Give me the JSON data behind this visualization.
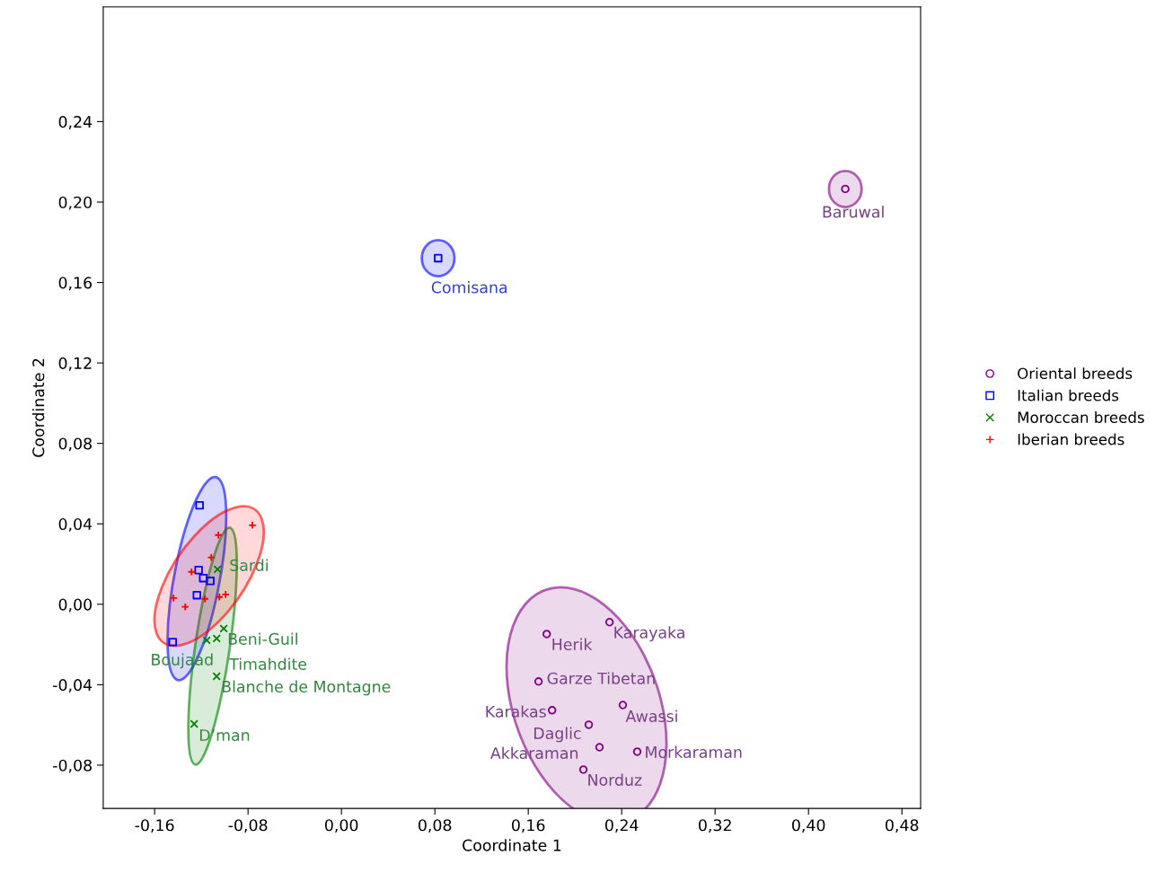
{
  "chart_data": {
    "type": "scatter",
    "xlabel": "Coordinate 1",
    "ylabel": "Coordinate 2",
    "xlim": [
      -0.204,
      0.496
    ],
    "ylim": [
      -0.1015,
      0.297
    ],
    "xticks": [
      {
        "value": -0.16,
        "label": "-0,16"
      },
      {
        "value": -0.08,
        "label": "-0,08"
      },
      {
        "value": 0,
        "label": "0,00"
      },
      {
        "value": 0.08,
        "label": "0,08"
      },
      {
        "value": 0.16,
        "label": "0,16"
      },
      {
        "value": 0.24,
        "label": "0,24"
      },
      {
        "value": 0.32,
        "label": "0,32"
      },
      {
        "value": 0.4,
        "label": "0,40"
      },
      {
        "value": 0.48,
        "label": "0,48"
      }
    ],
    "yticks": [
      {
        "value": -0.08,
        "label": "-0,08"
      },
      {
        "value": -0.04,
        "label": "-0,04"
      },
      {
        "value": 0,
        "label": "0,00"
      },
      {
        "value": 0.04,
        "label": "0,04"
      },
      {
        "value": 0.08,
        "label": "0,08"
      },
      {
        "value": 0.12,
        "label": "0,12"
      },
      {
        "value": 0.16,
        "label": "0,16"
      },
      {
        "value": 0.2,
        "label": "0,20"
      },
      {
        "value": 0.24,
        "label": "0,24"
      }
    ],
    "grid": false,
    "legend": "right",
    "series": [
      {
        "name": "Oriental breeds",
        "color": "#800080",
        "marker": "circle",
        "x": [
          0.2296,
          0.1758,
          0.1688,
          0.1804,
          0.241,
          0.2118,
          0.221,
          0.2533,
          0.2072,
          0.4315
        ],
        "values": [
          -0.0089,
          -0.0148,
          -0.0384,
          -0.0527,
          -0.0501,
          -0.0599,
          -0.0711,
          -0.0733,
          -0.0822,
          0.2065
        ]
      },
      {
        "name": "Italian breeds",
        "color": "#0000ff",
        "marker": "square",
        "x": [
          -0.1215,
          -0.1223,
          -0.1184,
          -0.1123,
          -0.1238,
          -0.1445,
          0.0828
        ],
        "values": [
          0.0492,
          0.017,
          0.013,
          0.0116,
          0.0045,
          -0.0188,
          0.1721
        ]
      },
      {
        "name": "Moroccan breeds",
        "color": "#008000",
        "marker": "cross",
        "x": [
          -0.1061,
          -0.1008,
          -0.1069,
          -0.1154,
          -0.1069,
          -0.1261
        ],
        "values": [
          0.0174,
          -0.0121,
          -0.017,
          -0.0179,
          -0.0358,
          -0.0595
        ]
      },
      {
        "name": "Iberian breeds",
        "color": "#ff0000",
        "marker": "plus",
        "x": [
          -0.0762,
          -0.1054,
          -0.1115,
          -0.1284,
          -0.1438,
          -0.1338,
          -0.1169,
          -0.1046,
          -0.0992
        ],
        "values": [
          0.0393,
          0.0344,
          0.0233,
          0.0161,
          0.0031,
          -0.0013,
          0.0027,
          0.0036,
          0.0049
        ]
      }
    ],
    "annotations": [
      {
        "text": "Sardi",
        "x": -0.1061,
        "y": 0.0174
      },
      {
        "text": "Beni-Guil",
        "x": -0.1008,
        "y": -0.0121
      },
      {
        "text": "Boujaad",
        "x": -0.1154,
        "y": -0.0179
      },
      {
        "text": "Timahdite",
        "x": -0.1069,
        "y": -0.017
      },
      {
        "text": "Blanche de Montagne",
        "x": -0.1069,
        "y": -0.0358
      },
      {
        "text": "D’man",
        "x": -0.1261,
        "y": -0.0595
      },
      {
        "text": "Comisana",
        "x": 0.0828,
        "y": 0.1721
      },
      {
        "text": "Baruwal",
        "x": 0.4315,
        "y": 0.2065
      },
      {
        "text": "Herik",
        "x": 0.1758,
        "y": -0.0148
      },
      {
        "text": "Karayaka",
        "x": 0.2296,
        "y": -0.0089
      },
      {
        "text": "Garze Tibetan",
        "x": 0.1688,
        "y": -0.0384
      },
      {
        "text": "Karakas",
        "x": 0.1804,
        "y": -0.0527
      },
      {
        "text": "Awassi",
        "x": 0.241,
        "y": -0.0501
      },
      {
        "text": "Daglic",
        "x": 0.2118,
        "y": -0.0599
      },
      {
        "text": "Akkaraman",
        "x": 0.221,
        "y": -0.0711
      },
      {
        "text": "Morkaraman",
        "x": 0.2533,
        "y": -0.0733
      },
      {
        "text": "Norduz",
        "x": 0.2072,
        "y": -0.0822
      }
    ]
  }
}
